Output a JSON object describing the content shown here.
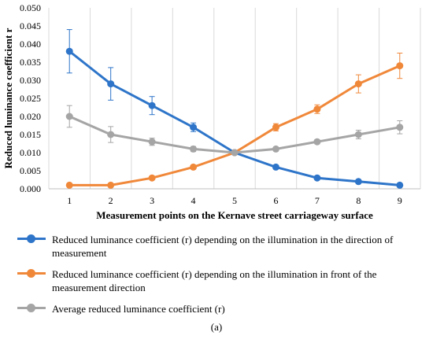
{
  "chart_data": {
    "type": "line",
    "title": "",
    "xlabel": "Measurement points on the Kernave street carriageway surface",
    "ylabel": "Reduced luminance coefficient r",
    "x": [
      1,
      2,
      3,
      4,
      5,
      6,
      7,
      8,
      9
    ],
    "ylim": [
      0,
      0.05
    ],
    "yticks": [
      "0.000",
      "0.005",
      "0.010",
      "0.015",
      "0.020",
      "0.025",
      "0.030",
      "0.035",
      "0.040",
      "0.045",
      "0.050"
    ],
    "grid": "vertical",
    "legend_position": "bottom",
    "series": [
      {
        "name": "Reduced luminance coefficient (r) depending on the illumination in the direction of measurement",
        "color": "#2e75c9",
        "values": [
          0.038,
          0.029,
          0.023,
          0.017,
          0.01,
          0.006,
          0.003,
          0.002,
          0.001
        ],
        "errors": [
          0.006,
          0.0045,
          0.0025,
          0.0012,
          null,
          null,
          null,
          null,
          null
        ]
      },
      {
        "name": "Reduced luminance coefficient (r) depending on the illumination in front of the measurement direction",
        "color": "#f0883a",
        "values": [
          0.001,
          0.001,
          0.003,
          0.006,
          0.01,
          0.017,
          0.022,
          0.029,
          0.034
        ],
        "errors": [
          null,
          null,
          null,
          null,
          null,
          0.001,
          0.0012,
          0.0025,
          0.0035
        ]
      },
      {
        "name": "Average reduced luminance coefficient (r)",
        "color": "#a5a5a5",
        "values": [
          0.02,
          0.015,
          0.013,
          0.011,
          0.01,
          0.011,
          0.013,
          0.015,
          0.017
        ],
        "errors": [
          0.003,
          0.0022,
          0.001,
          0.0007,
          null,
          0.0005,
          0.0006,
          0.0012,
          0.0018
        ]
      }
    ]
  },
  "caption": "(a)"
}
